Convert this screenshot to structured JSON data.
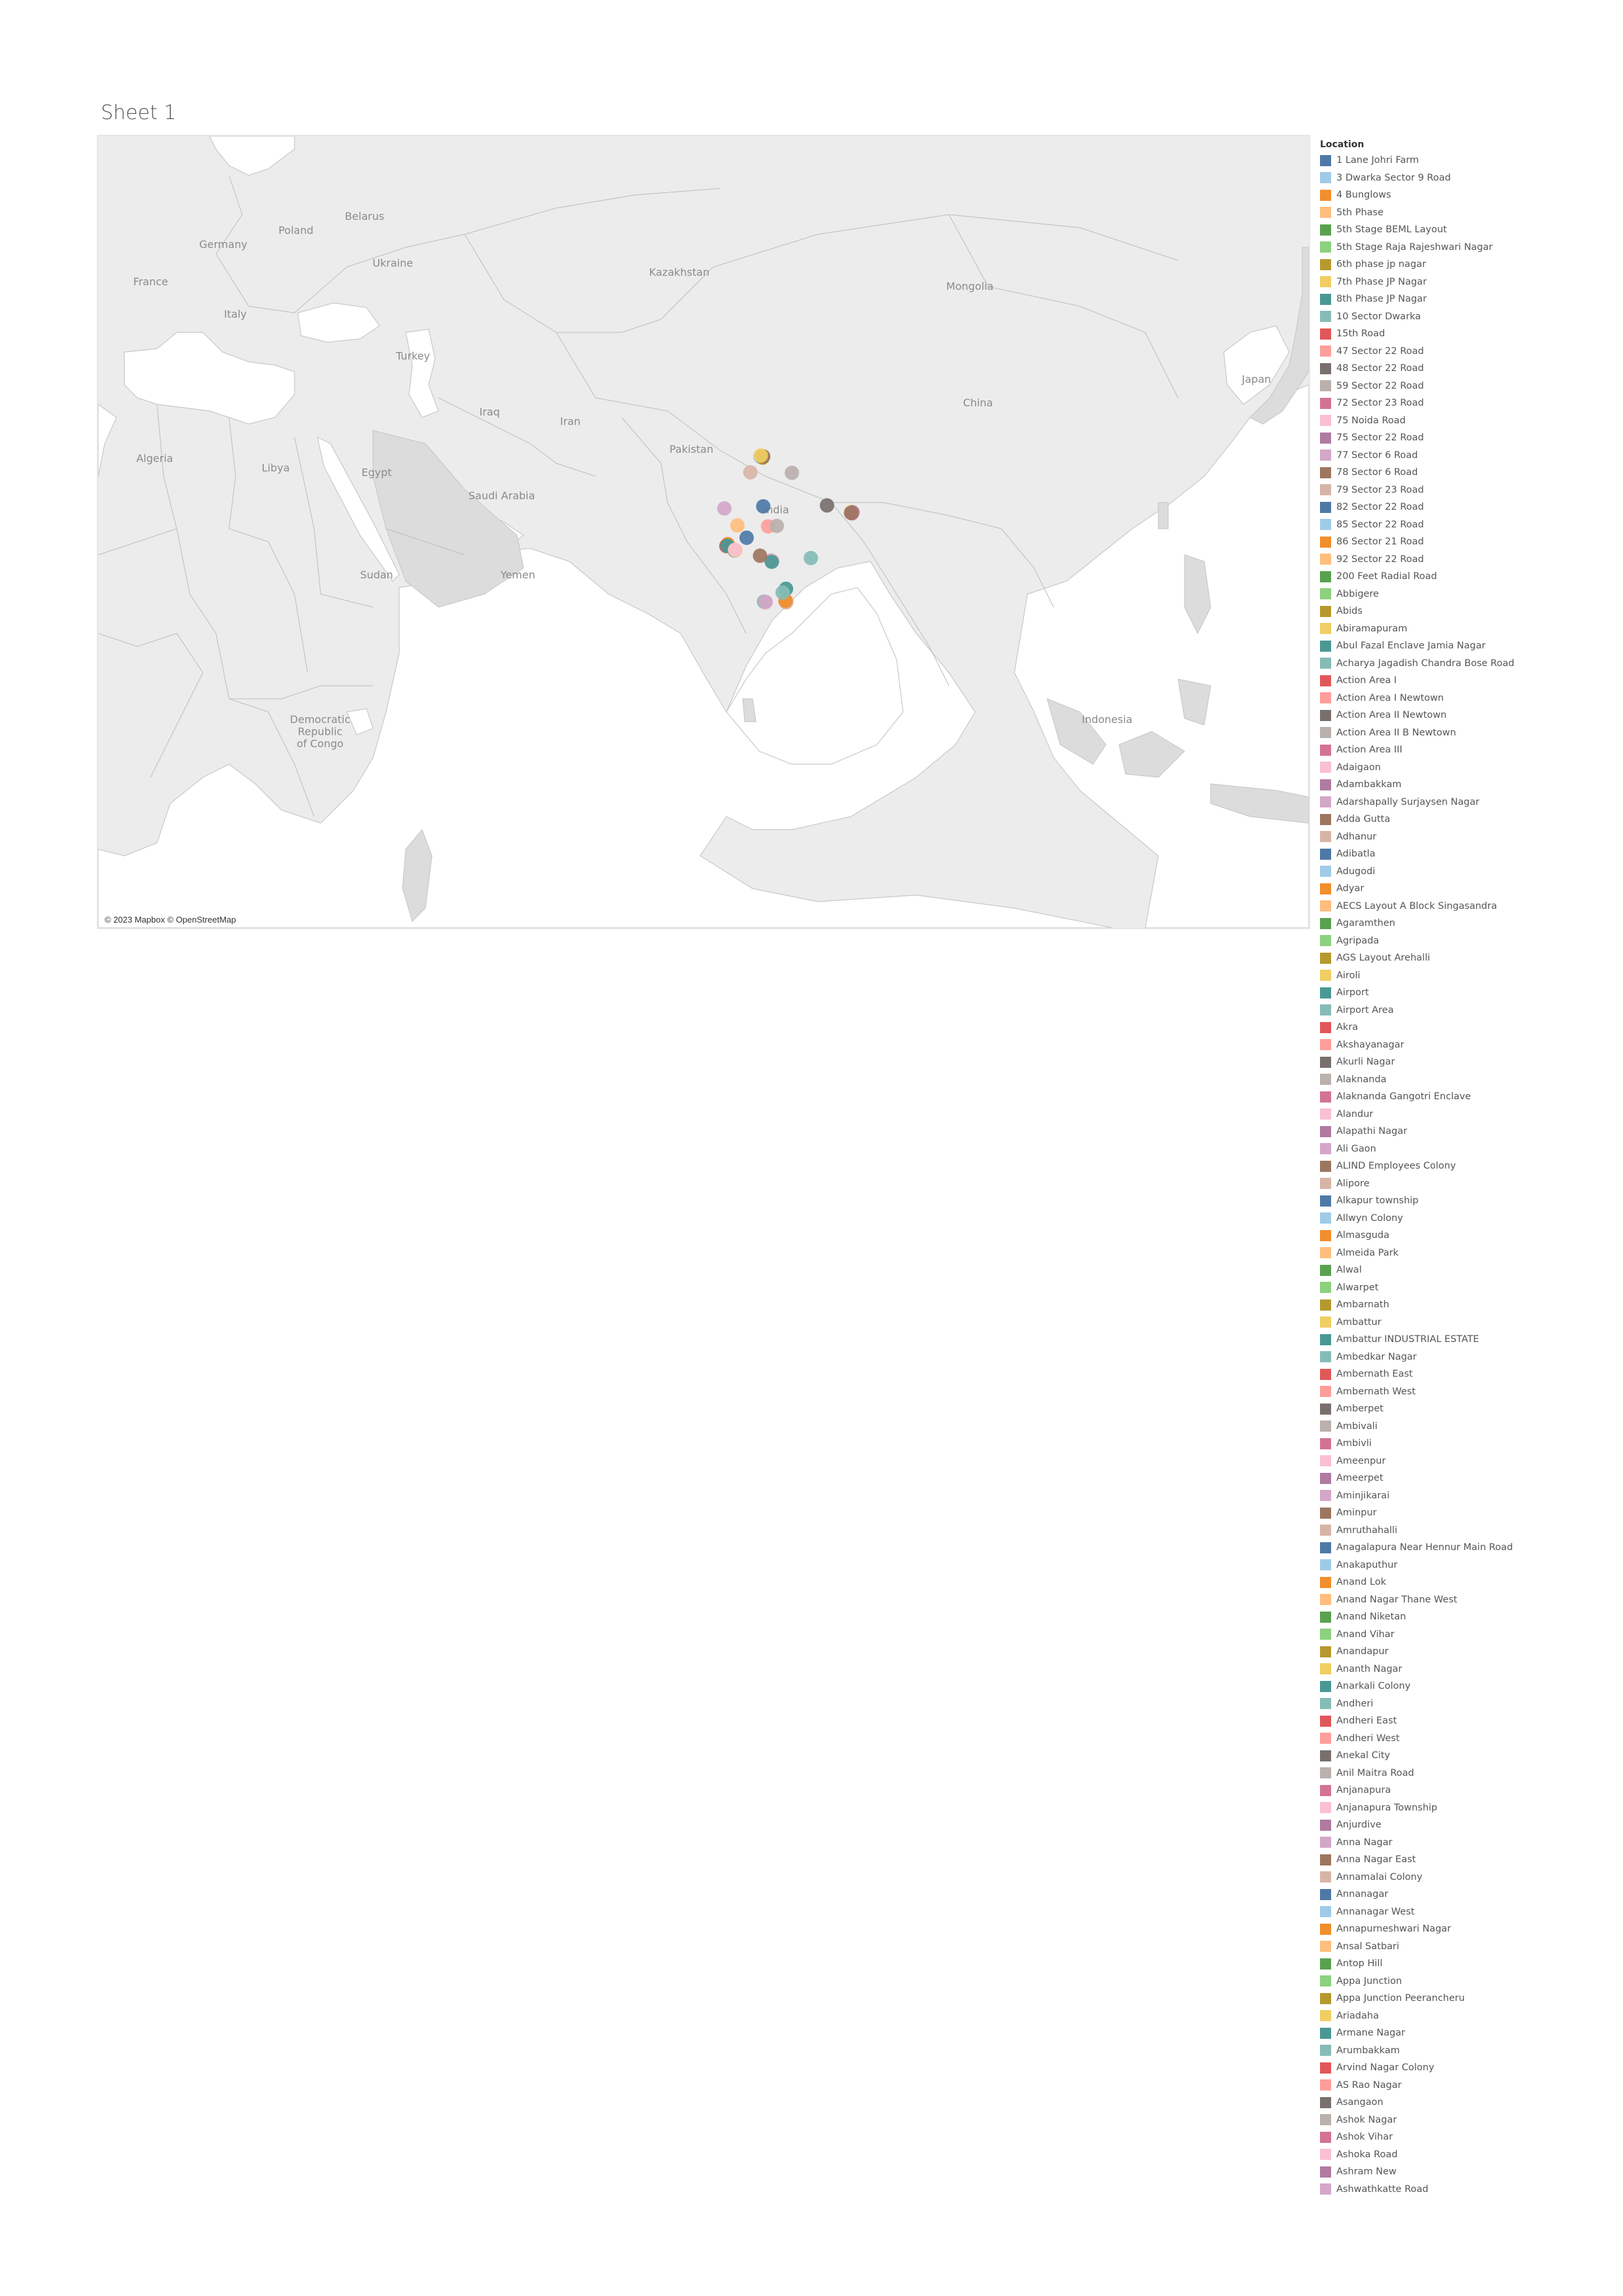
{
  "sheet": {
    "title": "Sheet 1"
  },
  "map": {
    "attribution": "© 2023 Mapbox © OpenStreetMap",
    "background_color": "#ececec",
    "water_color": "#ffffff",
    "land_color": "#d9d9d9",
    "labels": {
      "germany": "Germany",
      "poland": "Poland",
      "belarus": "Belarus",
      "ukraine": "Ukraine",
      "france": "France",
      "italy": "Italy",
      "kazakhstan": "Kazakhstan",
      "mongolia": "Mongolia",
      "turkey": "Turkey",
      "china": "China",
      "japan": "Japan",
      "iraq": "Iraq",
      "iran": "Iran",
      "algeria": "Algeria",
      "libya": "Libya",
      "egypt": "Egypt",
      "saudi_arabia": "Saudi Arabia",
      "pakistan": "Pakistan",
      "india": "India",
      "yemen": "Yemen",
      "sudan": "Sudan",
      "indonesia": "Indonesia",
      "drc_line1": "Democratic",
      "drc_line2": "Republic",
      "drc_line3": "of Congo"
    },
    "markers": [
      {
        "lon": 77.2,
        "lat": 28.6,
        "color": "#4e79a7"
      },
      {
        "lon": 77.05,
        "lat": 28.58,
        "color": "#a0cbe8"
      },
      {
        "lon": 77.35,
        "lat": 28.57,
        "color": "#8cd17d"
      },
      {
        "lon": 77.32,
        "lat": 28.48,
        "color": "#b6992d"
      },
      {
        "lon": 77.39,
        "lat": 28.62,
        "color": "#9d7660"
      },
      {
        "lon": 77.1,
        "lat": 28.7,
        "color": "#f1ce63"
      },
      {
        "lon": 72.58,
        "lat": 23.03,
        "color": "#d4a6c8"
      },
      {
        "lon": 75.8,
        "lat": 26.9,
        "color": "#d7b5a6"
      },
      {
        "lon": 80.95,
        "lat": 26.85,
        "color": "#bab0ac"
      },
      {
        "lon": 77.4,
        "lat": 23.25,
        "color": "#4e79a7"
      },
      {
        "lon": 78.0,
        "lat": 21.1,
        "color": "#ff9d9a"
      },
      {
        "lon": 79.08,
        "lat": 21.15,
        "color": "#bab0ac"
      },
      {
        "lon": 85.3,
        "lat": 23.35,
        "color": "#79706e"
      },
      {
        "lon": 88.36,
        "lat": 22.57,
        "color": "#b6992d"
      },
      {
        "lon": 88.43,
        "lat": 22.58,
        "color": "#e15759"
      },
      {
        "lon": 88.4,
        "lat": 22.5,
        "color": "#d37295"
      },
      {
        "lon": 88.3,
        "lat": 22.65,
        "color": "#f1ce63"
      },
      {
        "lon": 88.45,
        "lat": 22.62,
        "color": "#b07aa1"
      },
      {
        "lon": 88.28,
        "lat": 22.55,
        "color": "#9d7660"
      },
      {
        "lon": 72.9,
        "lat": 19.1,
        "color": "#ffbe7d"
      },
      {
        "lon": 72.85,
        "lat": 19.05,
        "color": "#ffbe7d"
      },
      {
        "lon": 73.0,
        "lat": 19.2,
        "color": "#f28e2b"
      },
      {
        "lon": 72.83,
        "lat": 18.98,
        "color": "#e15759"
      },
      {
        "lon": 72.95,
        "lat": 19.02,
        "color": "#499894"
      },
      {
        "lon": 73.85,
        "lat": 18.52,
        "color": "#59a14f"
      },
      {
        "lon": 73.95,
        "lat": 18.55,
        "color": "#f1ce63"
      },
      {
        "lon": 73.9,
        "lat": 18.58,
        "color": "#fabfd2"
      },
      {
        "lon": 75.34,
        "lat": 19.88,
        "color": "#4e79a7"
      },
      {
        "lon": 74.2,
        "lat": 21.2,
        "color": "#ffbe7d"
      },
      {
        "lon": 78.48,
        "lat": 17.38,
        "color": "#59a14f"
      },
      {
        "lon": 78.4,
        "lat": 17.45,
        "color": "#d4a6c8"
      },
      {
        "lon": 78.55,
        "lat": 17.4,
        "color": "#fabfd2"
      },
      {
        "lon": 78.45,
        "lat": 17.3,
        "color": "#499894"
      },
      {
        "lon": 83.3,
        "lat": 17.7,
        "color": "#86bcb6"
      },
      {
        "lon": 77.0,
        "lat": 17.95,
        "color": "#9d7660"
      },
      {
        "lon": 77.59,
        "lat": 12.97,
        "color": "#ffbe7d"
      },
      {
        "lon": 77.65,
        "lat": 12.9,
        "color": "#fabfd2"
      },
      {
        "lon": 77.5,
        "lat": 13.02,
        "color": "#86bcb6"
      },
      {
        "lon": 77.7,
        "lat": 13.0,
        "color": "#d4a6c8"
      },
      {
        "lon": 80.27,
        "lat": 13.08,
        "color": "#ffbe7d"
      },
      {
        "lon": 80.2,
        "lat": 13.0,
        "color": "#ff9d9a"
      },
      {
        "lon": 80.25,
        "lat": 12.95,
        "color": "#d7b5a6"
      },
      {
        "lon": 80.15,
        "lat": 13.12,
        "color": "#f28e2b"
      },
      {
        "lon": 80.22,
        "lat": 14.4,
        "color": "#499894"
      },
      {
        "lon": 79.8,
        "lat": 14.0,
        "color": "#86bcb6"
      }
    ]
  },
  "legend": {
    "title": "Location",
    "items": [
      {
        "label": "1 Lane Johri Farm",
        "color": "#4e79a7"
      },
      {
        "label": "3 Dwarka Sector 9 Road",
        "color": "#a0cbe8"
      },
      {
        "label": "4 Bunglows",
        "color": "#f28e2b"
      },
      {
        "label": "5th Phase",
        "color": "#ffbe7d"
      },
      {
        "label": "5th Stage BEML Layout",
        "color": "#59a14f"
      },
      {
        "label": "5th Stage Raja Rajeshwari Nagar",
        "color": "#8cd17d"
      },
      {
        "label": "6th phase jp nagar",
        "color": "#b6992d"
      },
      {
        "label": "7th Phase JP Nagar",
        "color": "#f1ce63"
      },
      {
        "label": "8th Phase JP Nagar",
        "color": "#499894"
      },
      {
        "label": "10 Sector Dwarka",
        "color": "#86bcb6"
      },
      {
        "label": "15th Road",
        "color": "#e15759"
      },
      {
        "label": "47 Sector 22 Road",
        "color": "#ff9d9a"
      },
      {
        "label": "48 Sector 22 Road",
        "color": "#79706e"
      },
      {
        "label": "59 Sector 22 Road",
        "color": "#bab0ac"
      },
      {
        "label": "72 Sector 23 Road",
        "color": "#d37295"
      },
      {
        "label": "75 Noida Road",
        "color": "#fabfd2"
      },
      {
        "label": "75 Sector 22 Road",
        "color": "#b07aa1"
      },
      {
        "label": "77 Sector 6 Road",
        "color": "#d4a6c8"
      },
      {
        "label": "78 Sector 6 Road",
        "color": "#9d7660"
      },
      {
        "label": "79 Sector 23 Road",
        "color": "#d7b5a6"
      },
      {
        "label": "82 Sector 22 Road",
        "color": "#4e79a7"
      },
      {
        "label": "85 Sector 22 Road",
        "color": "#a0cbe8"
      },
      {
        "label": "86 Sector 21 Road",
        "color": "#f28e2b"
      },
      {
        "label": "92 Sector 22 Road",
        "color": "#ffbe7d"
      },
      {
        "label": "200 Feet Radial Road",
        "color": "#59a14f"
      },
      {
        "label": "Abbigere",
        "color": "#8cd17d"
      },
      {
        "label": "Abids",
        "color": "#b6992d"
      },
      {
        "label": "Abiramapuram",
        "color": "#f1ce63"
      },
      {
        "label": "Abul Fazal Enclave Jamia Nagar",
        "color": "#499894"
      },
      {
        "label": "Acharya Jagadish Chandra Bose Road",
        "color": "#86bcb6"
      },
      {
        "label": "Action Area I",
        "color": "#e15759"
      },
      {
        "label": "Action Area I Newtown",
        "color": "#ff9d9a"
      },
      {
        "label": "Action Area II Newtown",
        "color": "#79706e"
      },
      {
        "label": "Action Area II B Newtown",
        "color": "#bab0ac"
      },
      {
        "label": "Action Area III",
        "color": "#d37295"
      },
      {
        "label": "Adaigaon",
        "color": "#fabfd2"
      },
      {
        "label": "Adambakkam",
        "color": "#b07aa1"
      },
      {
        "label": "Adarshapally Surjaysen Nagar",
        "color": "#d4a6c8"
      },
      {
        "label": "Adda Gutta",
        "color": "#9d7660"
      },
      {
        "label": "Adhanur",
        "color": "#d7b5a6"
      },
      {
        "label": "Adibatla",
        "color": "#4e79a7"
      },
      {
        "label": "Adugodi",
        "color": "#a0cbe8"
      },
      {
        "label": "Adyar",
        "color": "#f28e2b"
      },
      {
        "label": "AECS Layout A Block Singasandra",
        "color": "#ffbe7d"
      },
      {
        "label": "Agaramthen",
        "color": "#59a14f"
      },
      {
        "label": "Agripada",
        "color": "#8cd17d"
      },
      {
        "label": "AGS Layout Arehalli",
        "color": "#b6992d"
      },
      {
        "label": "Airoli",
        "color": "#f1ce63"
      },
      {
        "label": "Airport",
        "color": "#499894"
      },
      {
        "label": "Airport Area",
        "color": "#86bcb6"
      },
      {
        "label": "Akra",
        "color": "#e15759"
      },
      {
        "label": "Akshayanagar",
        "color": "#ff9d9a"
      },
      {
        "label": "Akurli Nagar",
        "color": "#79706e"
      },
      {
        "label": "Alaknanda",
        "color": "#bab0ac"
      },
      {
        "label": "Alaknanda Gangotri Enclave",
        "color": "#d37295"
      },
      {
        "label": "Alandur",
        "color": "#fabfd2"
      },
      {
        "label": "Alapathi Nagar",
        "color": "#b07aa1"
      },
      {
        "label": "Ali Gaon",
        "color": "#d4a6c8"
      },
      {
        "label": "ALIND Employees Colony",
        "color": "#9d7660"
      },
      {
        "label": "Alipore",
        "color": "#d7b5a6"
      },
      {
        "label": "Alkapur township",
        "color": "#4e79a7"
      },
      {
        "label": "Allwyn Colony",
        "color": "#a0cbe8"
      },
      {
        "label": "Almasguda",
        "color": "#f28e2b"
      },
      {
        "label": "Almeida Park",
        "color": "#ffbe7d"
      },
      {
        "label": "Alwal",
        "color": "#59a14f"
      },
      {
        "label": "Alwarpet",
        "color": "#8cd17d"
      },
      {
        "label": "Ambarnath",
        "color": "#b6992d"
      },
      {
        "label": "Ambattur",
        "color": "#f1ce63"
      },
      {
        "label": "Ambattur INDUSTRIAL ESTATE",
        "color": "#499894"
      },
      {
        "label": "Ambedkar Nagar",
        "color": "#86bcb6"
      },
      {
        "label": "Ambernath East",
        "color": "#e15759"
      },
      {
        "label": "Ambernath West",
        "color": "#ff9d9a"
      },
      {
        "label": "Amberpet",
        "color": "#79706e"
      },
      {
        "label": "Ambivali",
        "color": "#bab0ac"
      },
      {
        "label": "Ambivli",
        "color": "#d37295"
      },
      {
        "label": "Ameenpur",
        "color": "#fabfd2"
      },
      {
        "label": "Ameerpet",
        "color": "#b07aa1"
      },
      {
        "label": "Aminjikarai",
        "color": "#d4a6c8"
      },
      {
        "label": "Aminpur",
        "color": "#9d7660"
      },
      {
        "label": "Amruthahalli",
        "color": "#d7b5a6"
      },
      {
        "label": "Anagalapura Near Hennur Main Road",
        "color": "#4e79a7"
      },
      {
        "label": "Anakaputhur",
        "color": "#a0cbe8"
      },
      {
        "label": "Anand Lok",
        "color": "#f28e2b"
      },
      {
        "label": "Anand Nagar Thane West",
        "color": "#ffbe7d"
      },
      {
        "label": "Anand Niketan",
        "color": "#59a14f"
      },
      {
        "label": "Anand Vihar",
        "color": "#8cd17d"
      },
      {
        "label": "Anandapur",
        "color": "#b6992d"
      },
      {
        "label": "Ananth Nagar",
        "color": "#f1ce63"
      },
      {
        "label": "Anarkali Colony",
        "color": "#499894"
      },
      {
        "label": "Andheri",
        "color": "#86bcb6"
      },
      {
        "label": "Andheri East",
        "color": "#e15759"
      },
      {
        "label": "Andheri West",
        "color": "#ff9d9a"
      },
      {
        "label": "Anekal City",
        "color": "#79706e"
      },
      {
        "label": "Anil Maitra Road",
        "color": "#bab0ac"
      },
      {
        "label": "Anjanapura",
        "color": "#d37295"
      },
      {
        "label": "Anjanapura Township",
        "color": "#fabfd2"
      },
      {
        "label": "Anjurdive",
        "color": "#b07aa1"
      },
      {
        "label": "Anna Nagar",
        "color": "#d4a6c8"
      },
      {
        "label": "Anna Nagar East",
        "color": "#9d7660"
      },
      {
        "label": "Annamalai Colony",
        "color": "#d7b5a6"
      },
      {
        "label": "Annanagar",
        "color": "#4e79a7"
      },
      {
        "label": "Annanagar West",
        "color": "#a0cbe8"
      },
      {
        "label": "Annapurneshwari Nagar",
        "color": "#f28e2b"
      },
      {
        "label": "Ansal Satbari",
        "color": "#ffbe7d"
      },
      {
        "label": "Antop Hill",
        "color": "#59a14f"
      },
      {
        "label": "Appa Junction",
        "color": "#8cd17d"
      },
      {
        "label": "Appa Junction Peerancheru",
        "color": "#b6992d"
      },
      {
        "label": "Ariadaha",
        "color": "#f1ce63"
      },
      {
        "label": "Armane Nagar",
        "color": "#499894"
      },
      {
        "label": "Arumbakkam",
        "color": "#86bcb6"
      },
      {
        "label": "Arvind Nagar Colony",
        "color": "#e15759"
      },
      {
        "label": "AS Rao Nagar",
        "color": "#ff9d9a"
      },
      {
        "label": "Asangaon",
        "color": "#79706e"
      },
      {
        "label": "Ashok Nagar",
        "color": "#bab0ac"
      },
      {
        "label": "Ashok Vihar",
        "color": "#d37295"
      },
      {
        "label": "Ashoka Road",
        "color": "#fabfd2"
      },
      {
        "label": "Ashram New",
        "color": "#b07aa1"
      },
      {
        "label": "Ashwathkatte Road",
        "color": "#d4a6c8"
      }
    ]
  }
}
